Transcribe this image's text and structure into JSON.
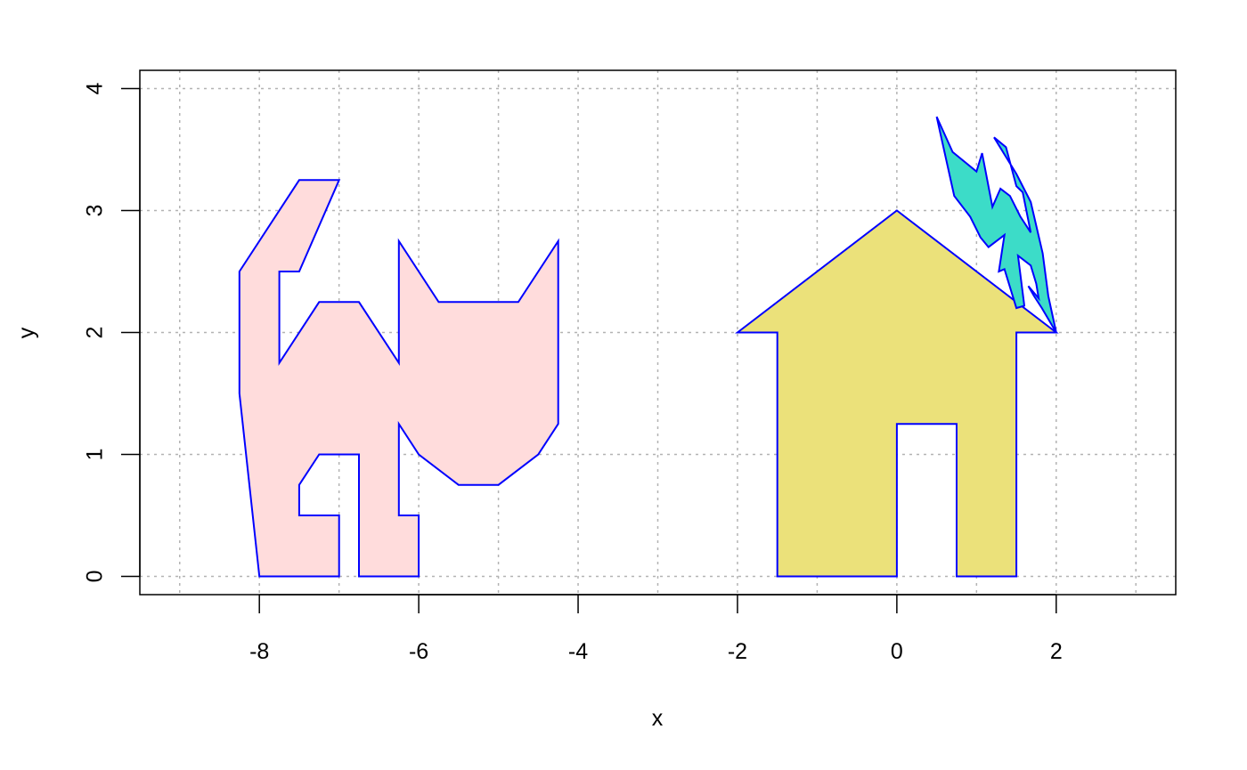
{
  "chart_data": {
    "type": "polygon",
    "xlabel": "x",
    "ylabel": "y",
    "xlim": [
      -9.5,
      3.5
    ],
    "ylim": [
      -0.15,
      4.15
    ],
    "x_ticks": [
      -8,
      -6,
      -4,
      -2,
      0,
      2
    ],
    "y_ticks": [
      0,
      1,
      2,
      3,
      4
    ],
    "x_grid": [
      -9,
      -8,
      -7,
      -6,
      -5,
      -4,
      -3,
      -2,
      -1,
      0,
      1,
      2,
      3
    ],
    "y_grid": [
      0,
      1,
      2,
      3,
      4
    ],
    "grid": true,
    "legend": "none",
    "outline_color": "#0000ff",
    "series": [
      {
        "fill": "#ffdcdc",
        "points": [
          [
            -8,
            0
          ],
          [
            -7,
            0
          ],
          [
            -7,
            0.5
          ],
          [
            -7.5,
            0.5
          ],
          [
            -7.5,
            0.75
          ],
          [
            -7.25,
            1
          ],
          [
            -6.75,
            1
          ],
          [
            -6.75,
            0
          ],
          [
            -6,
            0
          ],
          [
            -6,
            0.5
          ],
          [
            -6.25,
            0.5
          ],
          [
            -6.25,
            1.25
          ],
          [
            -6,
            1
          ],
          [
            -5.5,
            0.75
          ],
          [
            -5,
            0.75
          ],
          [
            -4.5,
            1
          ],
          [
            -4.25,
            1.25
          ],
          [
            -4.25,
            2.75
          ],
          [
            -4.75,
            2.25
          ],
          [
            -5.75,
            2.25
          ],
          [
            -6.25,
            2.75
          ],
          [
            -6.25,
            1.75
          ],
          [
            -6.75,
            2.25
          ],
          [
            -7.25,
            2.25
          ],
          [
            -7.75,
            1.75
          ],
          [
            -7.75,
            2.5
          ],
          [
            -7.5,
            2.5
          ],
          [
            -7,
            3.25
          ],
          [
            -7.5,
            3.25
          ],
          [
            -8.25,
            2.5
          ],
          [
            -8.25,
            1.5
          ]
        ]
      },
      {
        "fill": "#ebe17a",
        "points": [
          [
            -1.5,
            0
          ],
          [
            0,
            0
          ],
          [
            0,
            1.25
          ],
          [
            0.75,
            1.25
          ],
          [
            0.75,
            0
          ],
          [
            1.5,
            0
          ],
          [
            1.5,
            2
          ],
          [
            2,
            2
          ],
          [
            0,
            3
          ],
          [
            -2,
            2
          ],
          [
            -1.5,
            2
          ]
        ]
      },
      {
        "fill": "#3cdcc8",
        "points": [
          [
            1.5,
            2.2
          ],
          [
            1.35,
            2.52
          ],
          [
            1.28,
            2.5
          ],
          [
            1.35,
            2.8
          ],
          [
            1.25,
            2.75
          ],
          [
            1.15,
            2.7
          ],
          [
            1.05,
            2.78
          ],
          [
            0.92,
            2.95
          ],
          [
            0.72,
            3.12
          ],
          [
            0.5,
            3.77
          ],
          [
            0.7,
            3.48
          ],
          [
            1,
            3.32
          ],
          [
            1.07,
            3.47
          ],
          [
            1.2,
            3.03
          ],
          [
            1.3,
            3.18
          ],
          [
            1.42,
            3.12
          ],
          [
            1.55,
            2.95
          ],
          [
            1.68,
            2.82
          ],
          [
            1.58,
            3.15
          ],
          [
            1.5,
            3.2
          ],
          [
            1.37,
            3.52
          ],
          [
            1.22,
            3.6
          ],
          [
            1.5,
            3.3
          ],
          [
            1.68,
            3.07
          ],
          [
            1.83,
            2.65
          ],
          [
            1.9,
            2.3
          ],
          [
            2,
            2
          ],
          [
            1.82,
            2.2
          ],
          [
            1.72,
            2.3
          ],
          [
            1.65,
            2.38
          ],
          [
            1.78,
            2.28
          ],
          [
            1.75,
            2.4
          ],
          [
            1.68,
            2.55
          ],
          [
            1.52,
            2.63
          ],
          [
            1.6,
            2.22
          ]
        ]
      }
    ]
  }
}
